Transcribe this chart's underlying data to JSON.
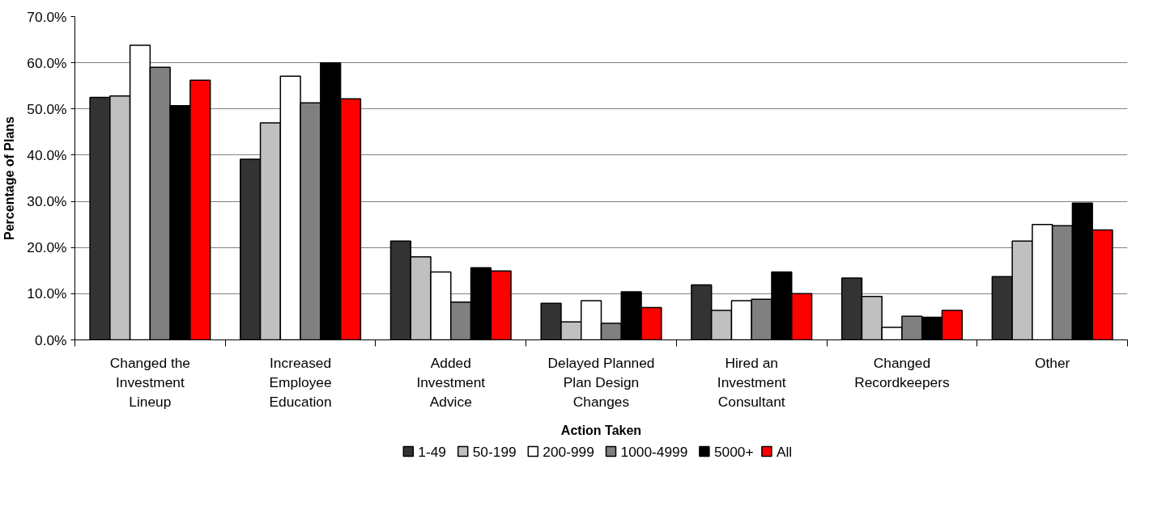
{
  "chart_data": {
    "type": "bar",
    "xlabel": "Action Taken",
    "ylabel": "Percentage of Plans",
    "categories": [
      "Changed the Investment Lineup",
      "Increased Employee Education",
      "Added Investment Advice",
      "Delayed Planned Plan Design Changes",
      "Hired an Investment Consultant",
      "Changed Recordkeepers",
      "Other"
    ],
    "series": [
      {
        "name": "1-49",
        "color": "#333333",
        "values": [
          52.5,
          39.1,
          21.4,
          7.9,
          11.9,
          13.4,
          13.7
        ]
      },
      {
        "name": "50-199",
        "color": "#c0c0c0",
        "values": [
          52.8,
          47.0,
          18.0,
          3.9,
          6.4,
          9.4,
          21.4
        ]
      },
      {
        "name": "200-999",
        "color": "#ffffff",
        "values": [
          63.8,
          57.1,
          14.7,
          8.5,
          8.5,
          2.7,
          25.0
        ]
      },
      {
        "name": "1000-4999",
        "color": "#808080",
        "values": [
          59.0,
          51.3,
          8.2,
          3.6,
          8.8,
          5.1,
          24.7
        ]
      },
      {
        "name": "5000+",
        "color": "#000000",
        "values": [
          50.7,
          60.0,
          15.6,
          10.4,
          14.7,
          4.9,
          29.6
        ]
      },
      {
        "name": "All",
        "color": "#ff0000",
        "values": [
          56.2,
          52.2,
          14.9,
          7.0,
          10.0,
          6.4,
          23.8
        ]
      }
    ],
    "ylim": [
      0,
      70
    ],
    "yticks": [
      {
        "value": 0,
        "label": "0.0%"
      },
      {
        "value": 10,
        "label": "10.0%"
      },
      {
        "value": 20,
        "label": "20.0%"
      },
      {
        "value": 30,
        "label": "30.0%"
      },
      {
        "value": 40,
        "label": "40.0%"
      },
      {
        "value": 50,
        "label": "50.0%"
      },
      {
        "value": 60,
        "label": "60.0%"
      },
      {
        "value": 70,
        "label": "70.0%"
      }
    ],
    "grid": "y",
    "legend": "bottom"
  }
}
